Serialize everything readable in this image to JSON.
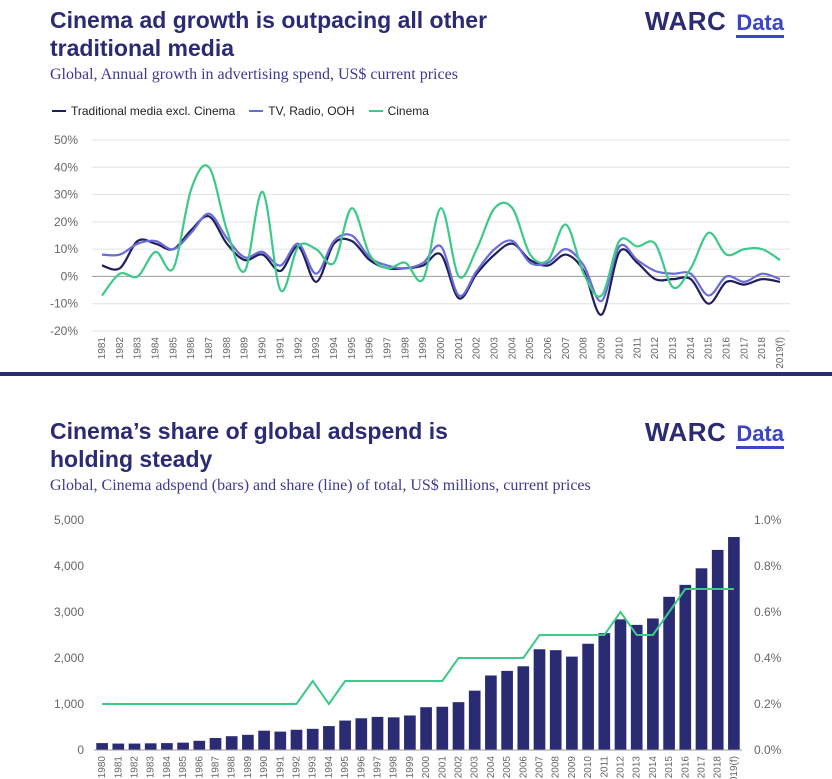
{
  "colors": {
    "navy": "#1f1f5e",
    "tv": "#6b6bd6",
    "cinema": "#3cc98a",
    "bar": "#2b2b73",
    "share": "#3cc98a"
  },
  "logo": {
    "brand": "WARC",
    "product": "Data"
  },
  "panel1": {
    "title_line1": "Cinema ad growth is outpacing all other",
    "title_line2": "traditional media",
    "subtitle": "Global, Annual growth in advertising spend, US$ current prices"
  },
  "panel2": {
    "title_line1": "Cinema’s share of global adspend is",
    "title_line2": "holding steady",
    "subtitle": "Global, Cinema adspend (bars) and share (line) of total, US$ millions, current prices"
  },
  "chart_data": [
    {
      "type": "line",
      "x": [
        "1981",
        "1982",
        "1983",
        "1984",
        "1985",
        "1986",
        "1987",
        "1988",
        "1989",
        "1990",
        "1991",
        "1992",
        "1993",
        "1994",
        "1995",
        "1996",
        "1997",
        "1998",
        "1999",
        "2000",
        "2001",
        "2002",
        "2003",
        "2004",
        "2005",
        "2006",
        "2007",
        "2008",
        "2009",
        "2010",
        "2011",
        "2012",
        "2013",
        "2014",
        "2015",
        "2016",
        "2017",
        "2018",
        "2019(f)"
      ],
      "ylim": [
        -20,
        50
      ],
      "yticks": [
        -20,
        -10,
        0,
        10,
        20,
        30,
        40,
        50
      ],
      "ytick_labels": [
        "-20%",
        "-10%",
        "0%",
        "10%",
        "20%",
        "30%",
        "40%",
        "50%"
      ],
      "grid": true,
      "legend_position": "top-left",
      "series": [
        {
          "name": "Traditional media excl. Cinema",
          "color": "#1f1f5e",
          "values": [
            4,
            3,
            13,
            12,
            10,
            17,
            22,
            12,
            6,
            8,
            2,
            11,
            -2,
            12,
            13,
            6,
            3,
            3,
            4,
            8,
            -8,
            1,
            8,
            12,
            6,
            4,
            8,
            2,
            -14,
            9,
            5,
            -1,
            -1,
            -1,
            -10,
            -2,
            -3,
            -1,
            -2
          ]
        },
        {
          "name": "TV, Radio, OOH",
          "color": "#6b6bd6",
          "values": [
            8,
            8,
            12,
            13,
            10,
            16,
            23,
            14,
            7,
            9,
            4,
            12,
            1,
            13,
            15,
            7,
            4,
            3,
            5,
            11,
            -7,
            2,
            10,
            13,
            5,
            5,
            10,
            4,
            -9,
            11,
            6,
            2,
            1,
            1,
            -7,
            0,
            -2,
            1,
            -1
          ]
        },
        {
          "name": "Cinema",
          "color": "#3cc98a",
          "values": [
            -7,
            1,
            0,
            9,
            3,
            32,
            40,
            17,
            2,
            31,
            -5,
            11,
            10,
            5,
            25,
            8,
            3,
            5,
            -1,
            25,
            0,
            10,
            25,
            25,
            8,
            6,
            19,
            1,
            -7,
            13,
            11,
            12,
            -4,
            3,
            16,
            8,
            10,
            10,
            6
          ]
        }
      ]
    },
    {
      "type": "bar",
      "categories": [
        "1980",
        "1981",
        "1982",
        "1983",
        "1984",
        "1985",
        "1986",
        "1987",
        "1988",
        "1989",
        "1990",
        "1991",
        "1992",
        "1993",
        "1994",
        "1995",
        "1996",
        "1997",
        "1998",
        "1999",
        "2000",
        "2001",
        "2002",
        "2003",
        "2004",
        "2005",
        "2006",
        "2007",
        "2008",
        "2009",
        "2010",
        "2011",
        "2012",
        "2013",
        "2014",
        "2015",
        "2016",
        "2017",
        "2018",
        "2019(f)"
      ],
      "bars": {
        "name": "Cinema adspend",
        "color": "#2b2b73",
        "values": [
          150,
          140,
          140,
          145,
          150,
          160,
          200,
          260,
          300,
          330,
          420,
          400,
          440,
          460,
          520,
          640,
          690,
          720,
          710,
          750,
          930,
          940,
          1040,
          1290,
          1620,
          1720,
          1820,
          2190,
          2170,
          2030,
          2310,
          2540,
          2840,
          2720,
          2860,
          3330,
          3590,
          3950,
          4350,
          4630
        ]
      },
      "line": {
        "name": "Share",
        "color": "#3cc98a",
        "values": [
          0.2,
          0.2,
          0.2,
          0.2,
          0.2,
          0.2,
          0.2,
          0.2,
          0.2,
          0.2,
          0.2,
          0.2,
          0.2,
          0.3,
          0.2,
          0.3,
          0.3,
          0.3,
          0.3,
          0.3,
          0.3,
          0.3,
          0.4,
          0.4,
          0.4,
          0.4,
          0.4,
          0.5,
          0.5,
          0.5,
          0.5,
          0.5,
          0.6,
          0.5,
          0.5,
          0.6,
          0.7,
          0.7,
          0.7,
          0.7
        ]
      },
      "ylim": [
        0,
        5000
      ],
      "yticks": [
        0,
        1000,
        2000,
        3000,
        4000,
        5000
      ],
      "ytick_labels": [
        "0",
        "1,000",
        "2,000",
        "3,000",
        "4,000",
        "5,000"
      ],
      "y2lim": [
        0,
        1.0
      ],
      "y2ticks": [
        0,
        0.2,
        0.4,
        0.6,
        0.8,
        1.0
      ],
      "y2tick_labels": [
        "0.0%",
        "0.2%",
        "0.4%",
        "0.6%",
        "0.8%",
        "1.0%"
      ],
      "grid": false
    }
  ]
}
